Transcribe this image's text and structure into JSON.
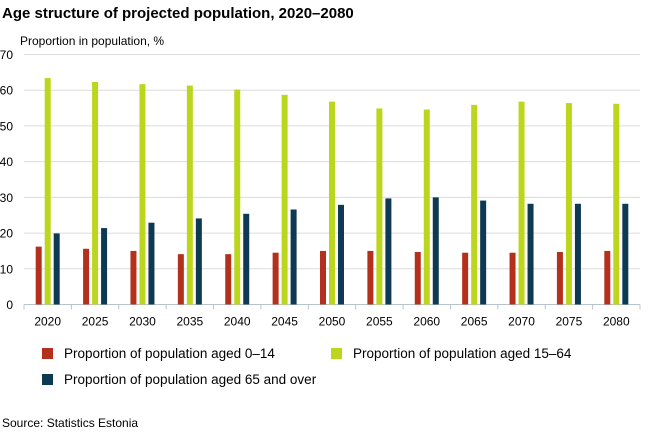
{
  "chart_data": {
    "type": "bar",
    "title": "Age structure of projected population, 2020–2080",
    "ylabel": "Proportion in population, %",
    "xlabel": "",
    "ylim": [
      0,
      70
    ],
    "yticks": [
      0,
      10,
      20,
      30,
      40,
      50,
      60,
      70
    ],
    "grid": true,
    "legend_placement": "bottom",
    "categories": [
      "2020",
      "2025",
      "2030",
      "2035",
      "2040",
      "2045",
      "2050",
      "2055",
      "2060",
      "2065",
      "2070",
      "2075",
      "2080"
    ],
    "series": [
      {
        "name": "Proportion of population aged 0–14",
        "color": "#b5301c",
        "values": [
          16.2,
          15.6,
          15.0,
          14.1,
          14.1,
          14.5,
          15.0,
          15.0,
          14.7,
          14.5,
          14.5,
          14.7,
          15.0
        ]
      },
      {
        "name": "Proportion of population aged 15–64",
        "color": "#bcd51d",
        "values": [
          63.4,
          62.3,
          61.7,
          61.3,
          60.2,
          58.7,
          56.8,
          54.9,
          54.6,
          55.9,
          56.8,
          56.4,
          56.2
        ]
      },
      {
        "name": "Proportion of population aged 65 and over",
        "color": "#0d3a52",
        "values": [
          19.9,
          21.4,
          22.9,
          24.1,
          25.4,
          26.6,
          27.9,
          29.7,
          30.0,
          29.1,
          28.2,
          28.2,
          28.2
        ]
      }
    ]
  },
  "source": "Source: Statistics Estonia"
}
